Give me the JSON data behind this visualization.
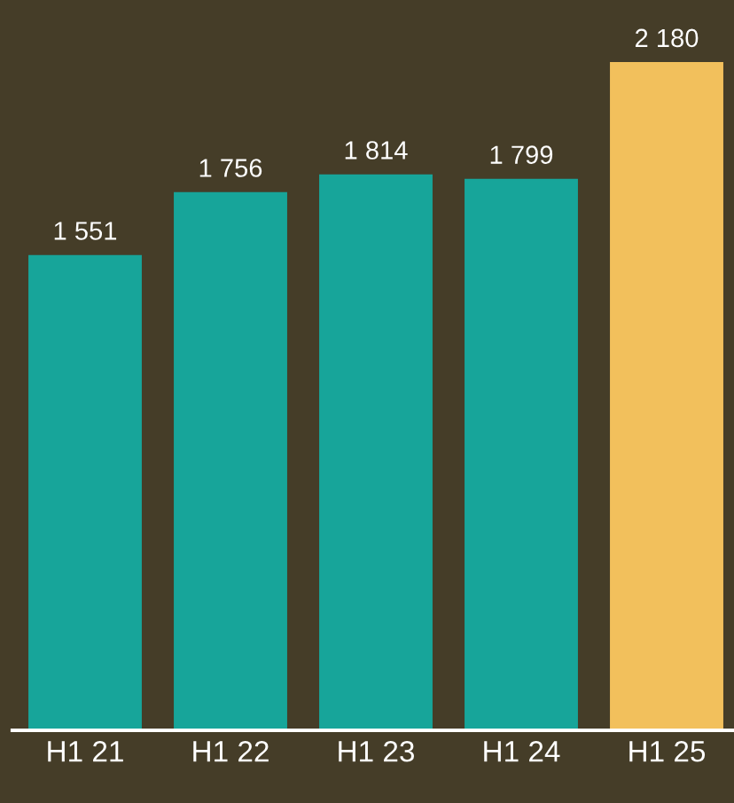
{
  "chart_data": {
    "type": "bar",
    "categories": [
      "H1 21",
      "H1 22",
      "H1 23",
      "H1 24",
      "H1 25"
    ],
    "values": [
      1551,
      1756,
      1814,
      1799,
      2180
    ],
    "colors": [
      "#17a59a",
      "#17a59a",
      "#17a59a",
      "#17a59a",
      "#f2c05c"
    ],
    "value_labels": [
      "1 551",
      "1 756",
      "1 814",
      "1 799",
      "2 180"
    ],
    "grid": false,
    "legend": false
  }
}
